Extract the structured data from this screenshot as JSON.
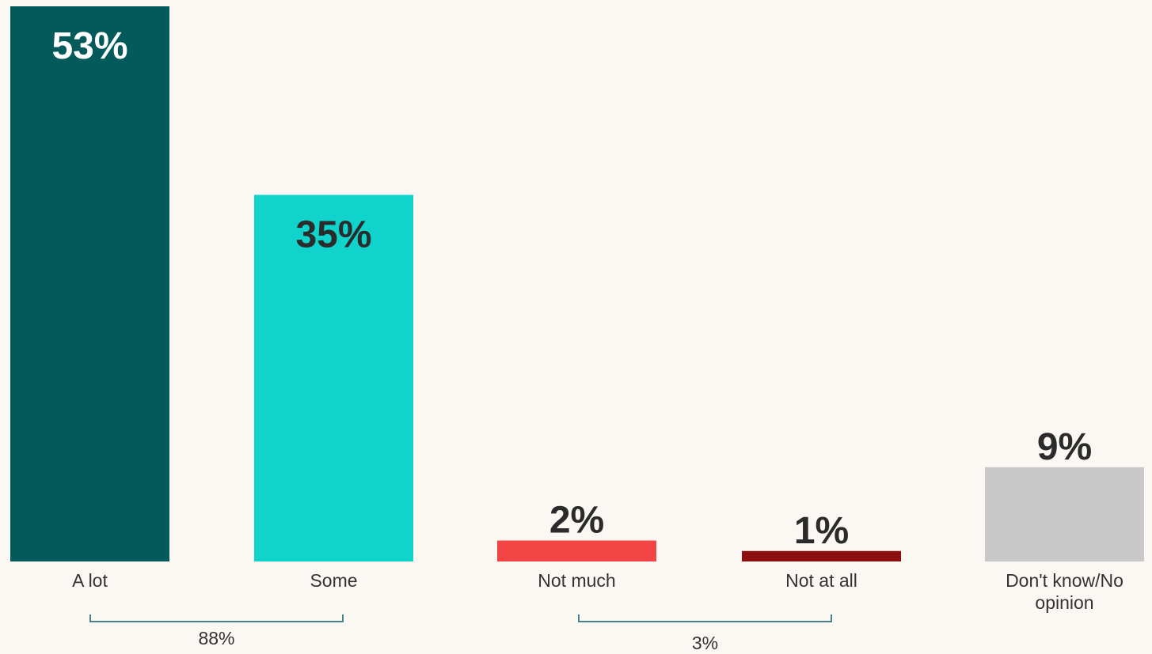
{
  "chart_data": {
    "type": "bar",
    "categories": [
      "A lot",
      "Some",
      "Not much",
      "Not at all",
      "Don't know/No opinion"
    ],
    "category_lines": [
      [
        "A lot"
      ],
      [
        "Some"
      ],
      [
        "Not much"
      ],
      [
        "Not at all"
      ],
      [
        "Don't know/No",
        "opinion"
      ]
    ],
    "values": [
      53,
      35,
      2,
      1,
      9
    ],
    "data_labels": [
      "53%",
      "35%",
      "2%",
      "1%",
      "9%"
    ],
    "colors": [
      "#035a5a",
      "#10d3cb",
      "#f44545",
      "#8b0f0f",
      "#c8c8c8"
    ],
    "label_colors": [
      "#ffffff",
      "#2b2b2b",
      "#2b2b2b",
      "#2b2b2b",
      "#2b2b2b"
    ],
    "label_position": [
      "inside",
      "inside",
      "outside",
      "outside",
      "outside"
    ],
    "ylim": [
      0,
      53
    ],
    "grid": false,
    "legend": "none",
    "groups": [
      {
        "label": "88%",
        "from": 0,
        "to": 1
      },
      {
        "label": "3%",
        "from": 2,
        "to": 3
      }
    ],
    "bracket_color": "#4a7f8a",
    "text_color": "#333333"
  }
}
